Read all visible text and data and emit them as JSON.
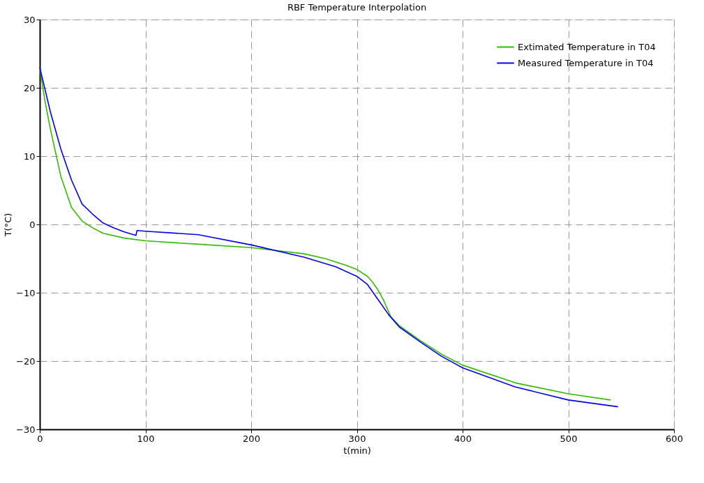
{
  "chart_data": {
    "type": "line",
    "title": "RBF Temperature Interpolation",
    "xlabel": "t(min)",
    "ylabel": "T(°C)",
    "xlim": [
      0,
      600
    ],
    "ylim": [
      -30,
      30
    ],
    "xticks": [
      0,
      100,
      200,
      300,
      400,
      500,
      600
    ],
    "yticks": [
      -30,
      -20,
      -10,
      0,
      10,
      20,
      30
    ],
    "grid": true,
    "legend": "top right",
    "marker": "none",
    "line_style": "solid",
    "series": [
      {
        "name": "Extimated Temperature in T04",
        "color": "#33bb00",
        "x": [
          0,
          5,
          10,
          20,
          30,
          40,
          50,
          60,
          80,
          100,
          150,
          200,
          250,
          270,
          290,
          300,
          310,
          315,
          320,
          325,
          332,
          340,
          360,
          380,
          400,
          450,
          500,
          540
        ],
        "values": [
          23,
          18,
          14,
          7,
          2.5,
          0.5,
          -0.5,
          -1.3,
          -2.0,
          -2.4,
          -2.9,
          -3.4,
          -4.3,
          -5,
          -6,
          -6.6,
          -7.6,
          -8.5,
          -9.6,
          -11,
          -13.5,
          -14.8,
          -17,
          -19,
          -20.6,
          -23.2,
          -24.8,
          -25.7
        ]
      },
      {
        "name": "Measured Temperature in T04",
        "color": "#0000ee",
        "x": [
          0,
          10,
          20,
          30,
          40,
          50,
          60,
          70,
          80,
          91,
          92,
          100,
          150,
          200,
          250,
          280,
          300,
          310,
          320,
          330,
          340,
          360,
          380,
          400,
          450,
          500,
          547
        ],
        "values": [
          23,
          16.5,
          11,
          6.5,
          3,
          1.5,
          0.2,
          -0.5,
          -1.1,
          -1.6,
          -0.9,
          -1.0,
          -1.5,
          -3.0,
          -4.8,
          -6.2,
          -7.6,
          -8.8,
          -11,
          -13.2,
          -15,
          -17.2,
          -19.3,
          -21,
          -23.8,
          -25.7,
          -26.7
        ]
      }
    ]
  }
}
